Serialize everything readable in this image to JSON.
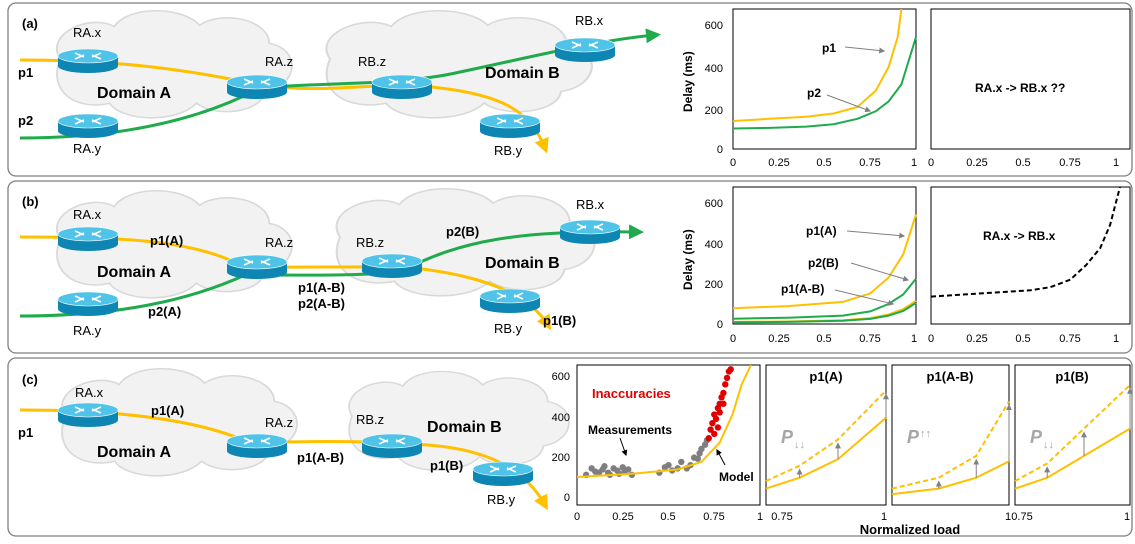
{
  "colors": {
    "p1": "#FFC000",
    "p2": "#1FAA4B",
    "inacc": "#E00000",
    "meas": "#7F7F7F",
    "router_top": "#4FC3E8",
    "router_side": "#0E86B3",
    "cloud": "#F0F0F0",
    "panel_border": "#7F7F7F"
  },
  "panels": [
    {
      "tag": "(a)",
      "routers": {
        "rax": "RA.x",
        "ray": "RA.y",
        "raz": "RA.z",
        "rbz": "RB.z",
        "rbx": "RB.x",
        "rby": "RB.y"
      },
      "domains": {
        "a": "Domain A",
        "b": "Domain B"
      },
      "paths": {
        "p1": "p1",
        "p2": "p2"
      },
      "chart_left": {
        "ylabel": "Delay (ms)",
        "yticks": [
          "0",
          "200",
          "400",
          "600"
        ],
        "xticks": [
          "0",
          "0.25",
          "0.5",
          "0.75",
          "1"
        ],
        "labels": {
          "p1": "p1",
          "p2": "p2"
        }
      },
      "chart_right": {
        "xticks": [
          "0",
          "0.25",
          "0.5",
          "0.75",
          "1"
        ],
        "text": "RA.x -> RB.x ??"
      }
    },
    {
      "tag": "(b)",
      "routers": {
        "rax": "RA.x",
        "ray": "RA.y",
        "raz": "RA.z",
        "rbz": "RB.z",
        "rbx": "RB.x",
        "rby": "RB.y"
      },
      "domains": {
        "a": "Domain A",
        "b": "Domain B"
      },
      "paths": {
        "p1a": "p1(A)",
        "p2a": "p2(A)",
        "p1ab": "p1(A-B)",
        "p2ab": "p2(A-B)",
        "p2b": "p2(B)",
        "p1b": "p1(B)"
      },
      "chart_left": {
        "ylabel": "Delay (ms)",
        "yticks": [
          "0",
          "200",
          "400",
          "600"
        ],
        "xticks": [
          "0",
          "0.25",
          "0.5",
          "0.75",
          "1"
        ],
        "labels": {
          "p1a": "p1(A)",
          "p2b": "p2(B)",
          "p1ab": "p1(A-B)"
        }
      },
      "chart_right": {
        "xticks": [
          "0",
          "0.25",
          "0.5",
          "0.75",
          "1"
        ],
        "text": "RA.x -> RB.x"
      }
    },
    {
      "tag": "(c)",
      "routers": {
        "rax": "RA.x",
        "raz": "RA.z",
        "rbz": "RB.z",
        "rby": "RB.y"
      },
      "domains": {
        "a": "Domain A",
        "b": "Domain B"
      },
      "paths": {
        "p1": "p1",
        "p1a": "p1(A)",
        "p1ab": "p1(A-B)",
        "p1b": "p1(B)"
      },
      "chart_main": {
        "yticks": [
          "0",
          "200",
          "400",
          "600"
        ],
        "xticks": [
          "0",
          "0.25",
          "0.5",
          "0.75",
          "1"
        ],
        "labels": {
          "inacc": "Inaccuracies",
          "meas": "Measurements",
          "model": "Model"
        }
      },
      "small": [
        {
          "title": "p1(A)",
          "p": "P",
          "arrows": "↓↓",
          "xticks": [
            "0.75",
            "1"
          ]
        },
        {
          "title": "p1(A-B)",
          "p": "P",
          "arrows": "↑↑",
          "xticks": [
            "0.75",
            "1"
          ]
        },
        {
          "title": "p1(B)",
          "p": "P",
          "arrows": "↓↓",
          "xticks": [
            "0.75",
            "1"
          ]
        }
      ],
      "xlabel": "Normalized load"
    }
  ],
  "chart_data": [
    {
      "type": "line",
      "panel": "(a) left",
      "ylabel": "Delay (ms)",
      "xlim": [
        0,
        1
      ],
      "ylim": [
        0,
        650
      ],
      "series": [
        {
          "name": "p1",
          "color": "#FFC000",
          "x": [
            0,
            0.2,
            0.4,
            0.55,
            0.68,
            0.78,
            0.85,
            0.9,
            0.92
          ],
          "y": [
            130,
            140,
            150,
            165,
            195,
            270,
            380,
            520,
            650
          ]
        },
        {
          "name": "p2",
          "color": "#1FAA4B",
          "x": [
            0,
            0.2,
            0.4,
            0.55,
            0.68,
            0.78,
            0.85,
            0.92,
            1.0
          ],
          "y": [
            95,
            98,
            104,
            115,
            140,
            175,
            220,
            300,
            520
          ]
        }
      ]
    },
    {
      "type": "line",
      "panel": "(a) right",
      "xlim": [
        0,
        1
      ],
      "ylim": [
        0,
        650
      ],
      "series": []
    },
    {
      "type": "line",
      "panel": "(b) left",
      "ylabel": "Delay (ms)",
      "xlim": [
        0,
        1
      ],
      "ylim": [
        0,
        650
      ],
      "series": [
        {
          "name": "p1(A)",
          "color": "#FFC000",
          "x": [
            0,
            0.3,
            0.6,
            0.75,
            0.85,
            0.93,
            1.0
          ],
          "y": [
            75,
            85,
            105,
            145,
            220,
            330,
            520
          ]
        },
        {
          "name": "p2(B)",
          "color": "#1FAA4B",
          "x": [
            0,
            0.3,
            0.6,
            0.75,
            0.85,
            0.93,
            1.0
          ],
          "y": [
            25,
            30,
            40,
            60,
            95,
            140,
            215
          ]
        },
        {
          "name": "p1(A-B)",
          "color": "#FFC000",
          "x": [
            0,
            0.3,
            0.6,
            0.75,
            0.85,
            0.93,
            1.0
          ],
          "y": [
            10,
            12,
            18,
            28,
            45,
            70,
            110
          ]
        },
        {
          "name": "p2(A-B)",
          "color": "#1FAA4B",
          "x": [
            0,
            0.3,
            0.6,
            0.75,
            0.85,
            0.93,
            1.0
          ],
          "y": [
            8,
            10,
            15,
            24,
            40,
            62,
            100
          ]
        }
      ]
    },
    {
      "type": "line",
      "panel": "(b) right",
      "xlim": [
        0,
        1
      ],
      "ylim": [
        0,
        650
      ],
      "series": [
        {
          "name": "RA.x -> RB.x",
          "color": "#000000",
          "dashed": true,
          "x": [
            0,
            0.25,
            0.5,
            0.6,
            0.7,
            0.78,
            0.85,
            0.9,
            0.95
          ],
          "y": [
            130,
            145,
            160,
            175,
            210,
            280,
            360,
            470,
            650
          ]
        }
      ]
    },
    {
      "type": "scatter",
      "panel": "(c) main",
      "xlim": [
        0,
        1
      ],
      "ylim": [
        0,
        650
      ],
      "series": [
        {
          "name": "Measurements",
          "color": "#7F7F7F",
          "x": [
            0.05,
            0.08,
            0.1,
            0.12,
            0.14,
            0.15,
            0.17,
            0.18,
            0.2,
            0.22,
            0.23,
            0.25,
            0.26,
            0.28,
            0.3,
            0.45,
            0.48,
            0.5,
            0.52,
            0.55,
            0.57,
            0.6,
            0.62,
            0.64,
            0.66,
            0.67,
            0.68,
            0.7,
            0.71
          ],
          "y": [
            140,
            170,
            155,
            150,
            165,
            180,
            150,
            140,
            170,
            160,
            145,
            175,
            155,
            165,
            140,
            150,
            175,
            185,
            160,
            170,
            200,
            170,
            185,
            220,
            215,
            240,
            260,
            280,
            300
          ]
        },
        {
          "name": "Inaccuracies",
          "color": "#E00000",
          "x": [
            0.72,
            0.73,
            0.74,
            0.75,
            0.75,
            0.76,
            0.77,
            0.77,
            0.78,
            0.78,
            0.79,
            0.8,
            0.8,
            0.81,
            0.82,
            0.83,
            0.84
          ],
          "y": [
            310,
            350,
            380,
            330,
            420,
            400,
            450,
            360,
            470,
            430,
            500,
            470,
            520,
            560,
            590,
            620,
            630
          ]
        },
        {
          "name": "Model",
          "color": "#FFC000",
          "line": true,
          "x": [
            0,
            0.3,
            0.55,
            0.68,
            0.78,
            0.85,
            0.9,
            0.95
          ],
          "y": [
            130,
            145,
            165,
            200,
            290,
            420,
            560,
            680
          ]
        }
      ]
    },
    {
      "type": "line",
      "panel": "(c) p1(A)",
      "xlim": [
        0.75,
        1
      ],
      "series": [
        {
          "name": "model",
          "color": "#FFC000",
          "x": [
            0.75,
            0.82,
            0.9,
            1.0
          ],
          "y": [
            0.15,
            0.25,
            0.42,
            0.8
          ]
        },
        {
          "name": "measured",
          "color": "#FFC000",
          "dashed": true,
          "x": [
            0.75,
            0.82,
            0.9,
            1.0
          ],
          "y": [
            0.22,
            0.36,
            0.6,
            1.05
          ]
        }
      ]
    },
    {
      "type": "line",
      "panel": "(c) p1(A-B)",
      "xlim": [
        0.75,
        1
      ],
      "series": [
        {
          "name": "model",
          "color": "#FFC000",
          "x": [
            0.75,
            0.85,
            0.93,
            1.0
          ],
          "y": [
            0.1,
            0.15,
            0.25,
            0.4
          ]
        },
        {
          "name": "measured",
          "color": "#FFC000",
          "dashed": true,
          "x": [
            0.75,
            0.85,
            0.93,
            1.0
          ],
          "y": [
            0.15,
            0.25,
            0.45,
            0.95
          ]
        }
      ]
    },
    {
      "type": "line",
      "panel": "(c) p1(B)",
      "xlim": [
        0.75,
        1
      ],
      "series": [
        {
          "name": "model",
          "color": "#FFC000",
          "x": [
            0.75,
            0.82,
            0.9,
            1.0
          ],
          "y": [
            0.15,
            0.25,
            0.45,
            0.7
          ]
        },
        {
          "name": "measured",
          "color": "#FFC000",
          "dashed": true,
          "x": [
            0.75,
            0.82,
            0.9,
            1.0
          ],
          "y": [
            0.22,
            0.38,
            0.7,
            1.1
          ]
        }
      ]
    }
  ]
}
